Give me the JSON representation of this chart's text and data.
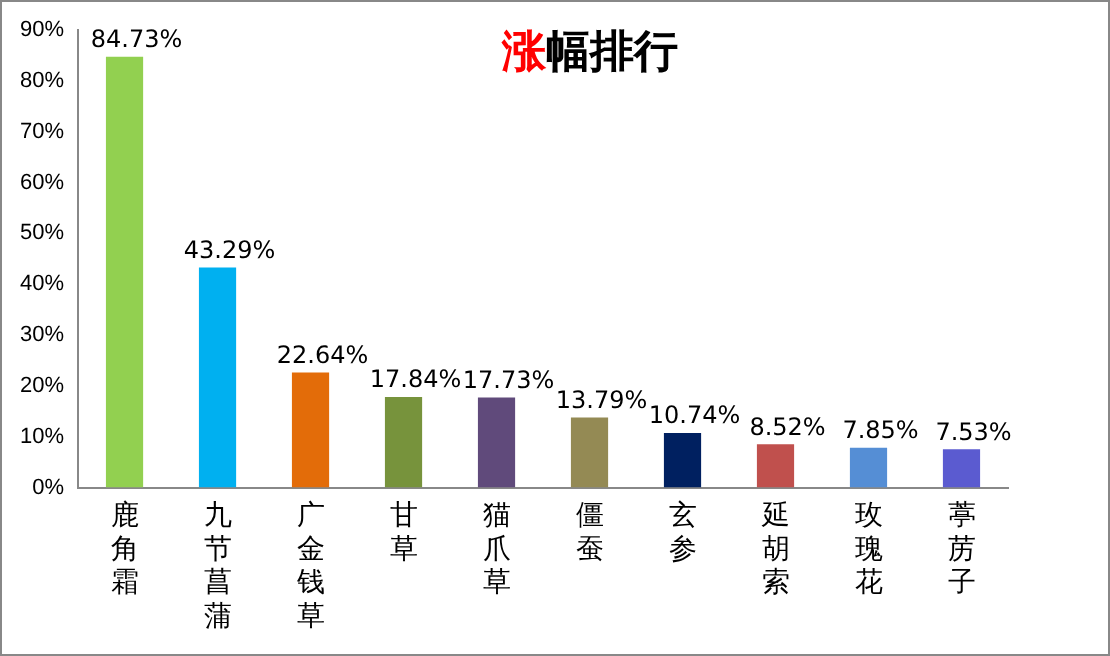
{
  "chart_data": {
    "type": "bar",
    "title": "涨幅排行",
    "categories": [
      "鹿角霜",
      "九节菖蒲",
      "广金钱草",
      "甘草",
      "猫爪草",
      "僵蚕",
      "玄参",
      "延胡索",
      "玫瑰花",
      "葶苈子"
    ],
    "values": [
      84.73,
      43.29,
      22.64,
      17.84,
      17.73,
      13.79,
      10.74,
      8.52,
      7.85,
      7.53
    ],
    "colors": [
      "#92d050",
      "#00b0f0",
      "#e36c09",
      "#77933c",
      "#604a7b",
      "#948a54",
      "#002060",
      "#c0504d",
      "#558ed5",
      "#5b5bd0"
    ],
    "value_labels": [
      "84.73%",
      "43.29%",
      "22.64%",
      "17.84%",
      "17.73%",
      "13.79%",
      "10.74%",
      "8.52%",
      "7.85%",
      "7.53%"
    ],
    "ylim": [
      0,
      90
    ],
    "yticks": [
      {
        "value": 0,
        "label": "0%"
      },
      {
        "value": 10,
        "label": "10%"
      },
      {
        "value": 20,
        "label": "20%"
      },
      {
        "value": 30,
        "label": "30%"
      },
      {
        "value": 40,
        "label": "40%"
      },
      {
        "value": 50,
        "label": "50%"
      },
      {
        "value": 60,
        "label": "60%"
      },
      {
        "value": 70,
        "label": "70%"
      },
      {
        "value": 80,
        "label": "80%"
      },
      {
        "value": 90,
        "label": "90%"
      }
    ],
    "grid": false,
    "legend": false
  }
}
